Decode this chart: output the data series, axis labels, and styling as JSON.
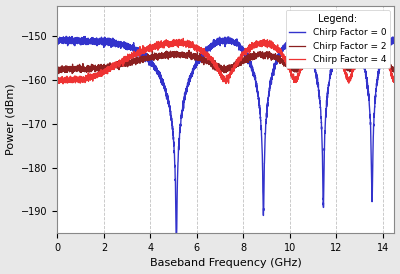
{
  "xlabel": "Baseband Frequency (GHz)",
  "ylabel": "Power (dBm)",
  "xlim": [
    0,
    14.5
  ],
  "ylim": [
    -195,
    -143
  ],
  "yticks": [
    -190,
    -180,
    -170,
    -160,
    -150
  ],
  "xticks": [
    0,
    2,
    4,
    6,
    8,
    10,
    12,
    14
  ],
  "legend_labels": [
    "Chirp Factor = 0",
    "Chirp Factor = 2",
    "Chirp Factor = 4"
  ],
  "legend_title": "Legend:",
  "colors": [
    "#3333cc",
    "#8B2020",
    "#ee3333"
  ],
  "linewidths": [
    1.0,
    0.9,
    0.9
  ],
  "background_color": "#e8e8e8",
  "plot_bg_color": "#ffffff",
  "grid_color": "#bbbbbb",
  "base_power_dBm": -160.0,
  "null_freq_scale": 8.7,
  "noise_std": 0.45
}
